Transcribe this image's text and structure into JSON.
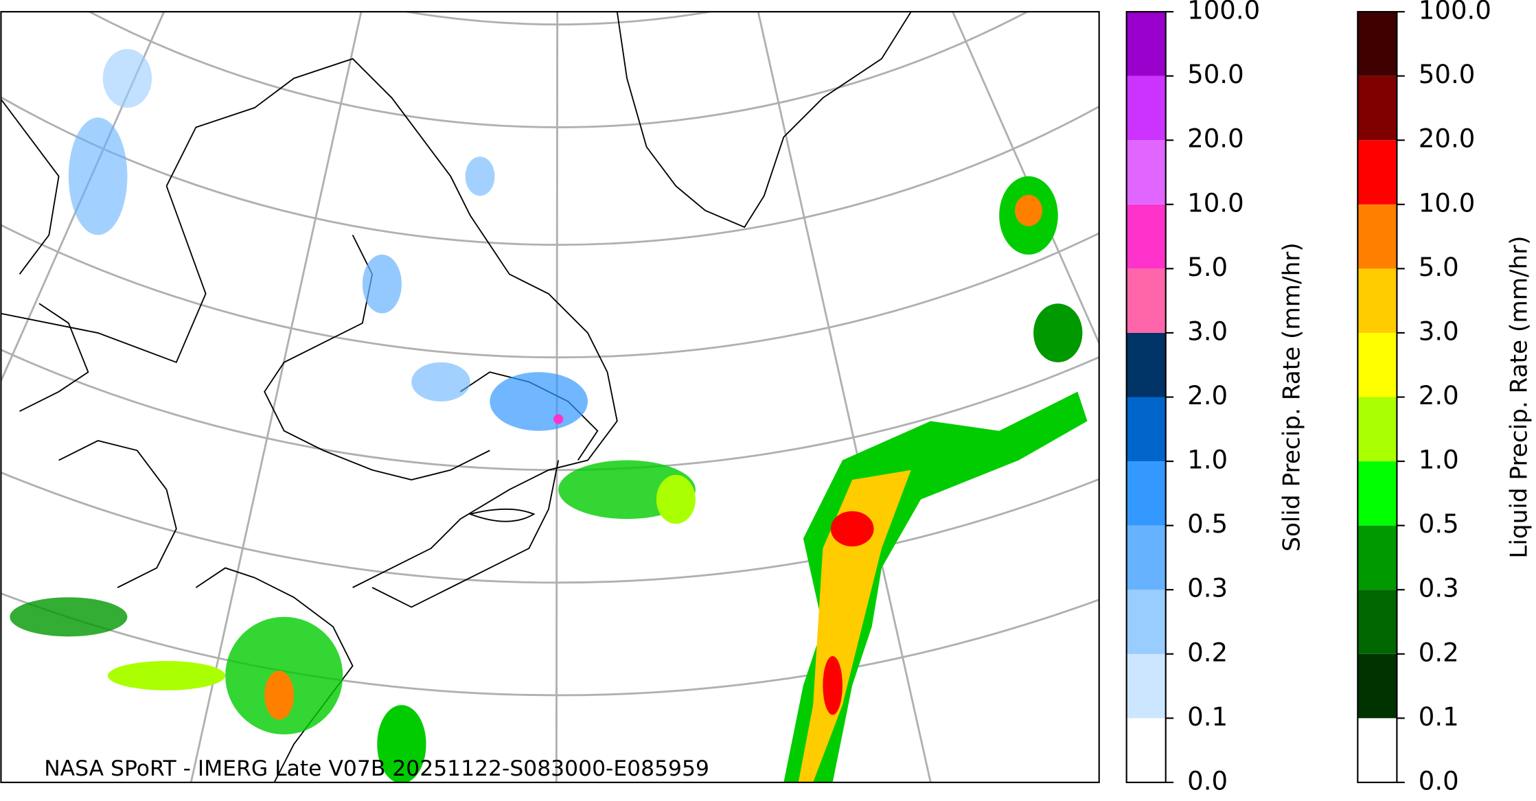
{
  "caption": "NASA SPoRT - IMERG Late V07B 20251122-S083000-E085959",
  "colorbars": [
    {
      "label": "Solid Precip. Rate (mm/hr)",
      "ticks": [
        {
          "value": 0,
          "label": "0.0"
        },
        {
          "value": 0.1,
          "label": "0.1"
        },
        {
          "value": 0.2,
          "label": "0.2"
        },
        {
          "value": 0.3,
          "label": "0.3"
        },
        {
          "value": 0.5,
          "label": "0.5"
        },
        {
          "value": 1,
          "label": "1.0"
        },
        {
          "value": 2,
          "label": "2.0"
        },
        {
          "value": 3,
          "label": "3.0"
        },
        {
          "value": 5,
          "label": "5.0"
        },
        {
          "value": 10,
          "label": "10.0"
        },
        {
          "value": 20,
          "label": "20.0"
        },
        {
          "value": 50,
          "label": "50.0"
        },
        {
          "value": 100,
          "label": "100.0"
        }
      ],
      "colors": [
        "#ffffff",
        "#cce6ff",
        "#99ccff",
        "#66b2ff",
        "#3399ff",
        "#0066cc",
        "#003366",
        "#ff66aa",
        "#ff33cc",
        "#e066ff",
        "#cc33ff",
        "#9900cc"
      ]
    },
    {
      "label": "Liquid Precip. Rate (mm/hr)",
      "ticks": [
        {
          "value": 0,
          "label": "0.0"
        },
        {
          "value": 0.1,
          "label": "0.1"
        },
        {
          "value": 0.2,
          "label": "0.2"
        },
        {
          "value": 0.3,
          "label": "0.3"
        },
        {
          "value": 0.5,
          "label": "0.5"
        },
        {
          "value": 1,
          "label": "1.0"
        },
        {
          "value": 2,
          "label": "2.0"
        },
        {
          "value": 3,
          "label": "3.0"
        },
        {
          "value": 5,
          "label": "5.0"
        },
        {
          "value": 10,
          "label": "10.0"
        },
        {
          "value": 20,
          "label": "20.0"
        },
        {
          "value": 50,
          "label": "50.0"
        },
        {
          "value": 100,
          "label": "100.0"
        }
      ],
      "colors": [
        "#ffffff",
        "#003300",
        "#006600",
        "#009900",
        "#00ff00",
        "#aaff00",
        "#ffff00",
        "#ffcc00",
        "#ff8000",
        "#ff0000",
        "#800000",
        "#400000"
      ]
    }
  ]
}
